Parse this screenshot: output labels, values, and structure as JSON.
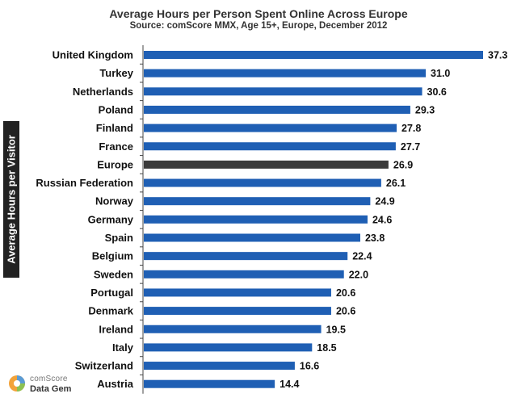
{
  "chart_data": {
    "type": "bar",
    "orientation": "horizontal",
    "title": "Average Hours per Person Spent Online Across Europe",
    "subtitle": "Source: comScore MMX, Age 15+, Europe, December 2012",
    "ylabel": "Average Hours per Visitor",
    "xlabel": "",
    "xlim": [
      0,
      37.3
    ],
    "categories": [
      "United Kingdom",
      "Turkey",
      "Netherlands",
      "Poland",
      "Finland",
      "France",
      "Europe",
      "Russian Federation",
      "Norway",
      "Germany",
      "Spain",
      "Belgium",
      "Sweden",
      "Portugal",
      "Denmark",
      "Ireland",
      "Italy",
      "Switzerland",
      "Austria"
    ],
    "values": [
      37.3,
      31.0,
      30.6,
      29.3,
      27.8,
      27.7,
      26.9,
      26.1,
      24.9,
      24.6,
      23.8,
      22.4,
      22.0,
      20.6,
      20.6,
      19.5,
      18.5,
      16.6,
      14.4
    ],
    "value_labels": [
      "37.3",
      "31.0",
      "30.6",
      "29.3",
      "27.8",
      "27.7",
      "26.9",
      "26.1",
      "24.9",
      "24.6",
      "23.8",
      "22.4",
      "22.0",
      "20.6",
      "20.6",
      "19.5",
      "18.5",
      "16.6",
      "14.4"
    ],
    "highlight_category": "Europe",
    "bar_color": "#1f5fb4",
    "highlight_color": "#3a3a3a"
  },
  "logo": {
    "brand": "comScore",
    "product": "Data Gem"
  }
}
